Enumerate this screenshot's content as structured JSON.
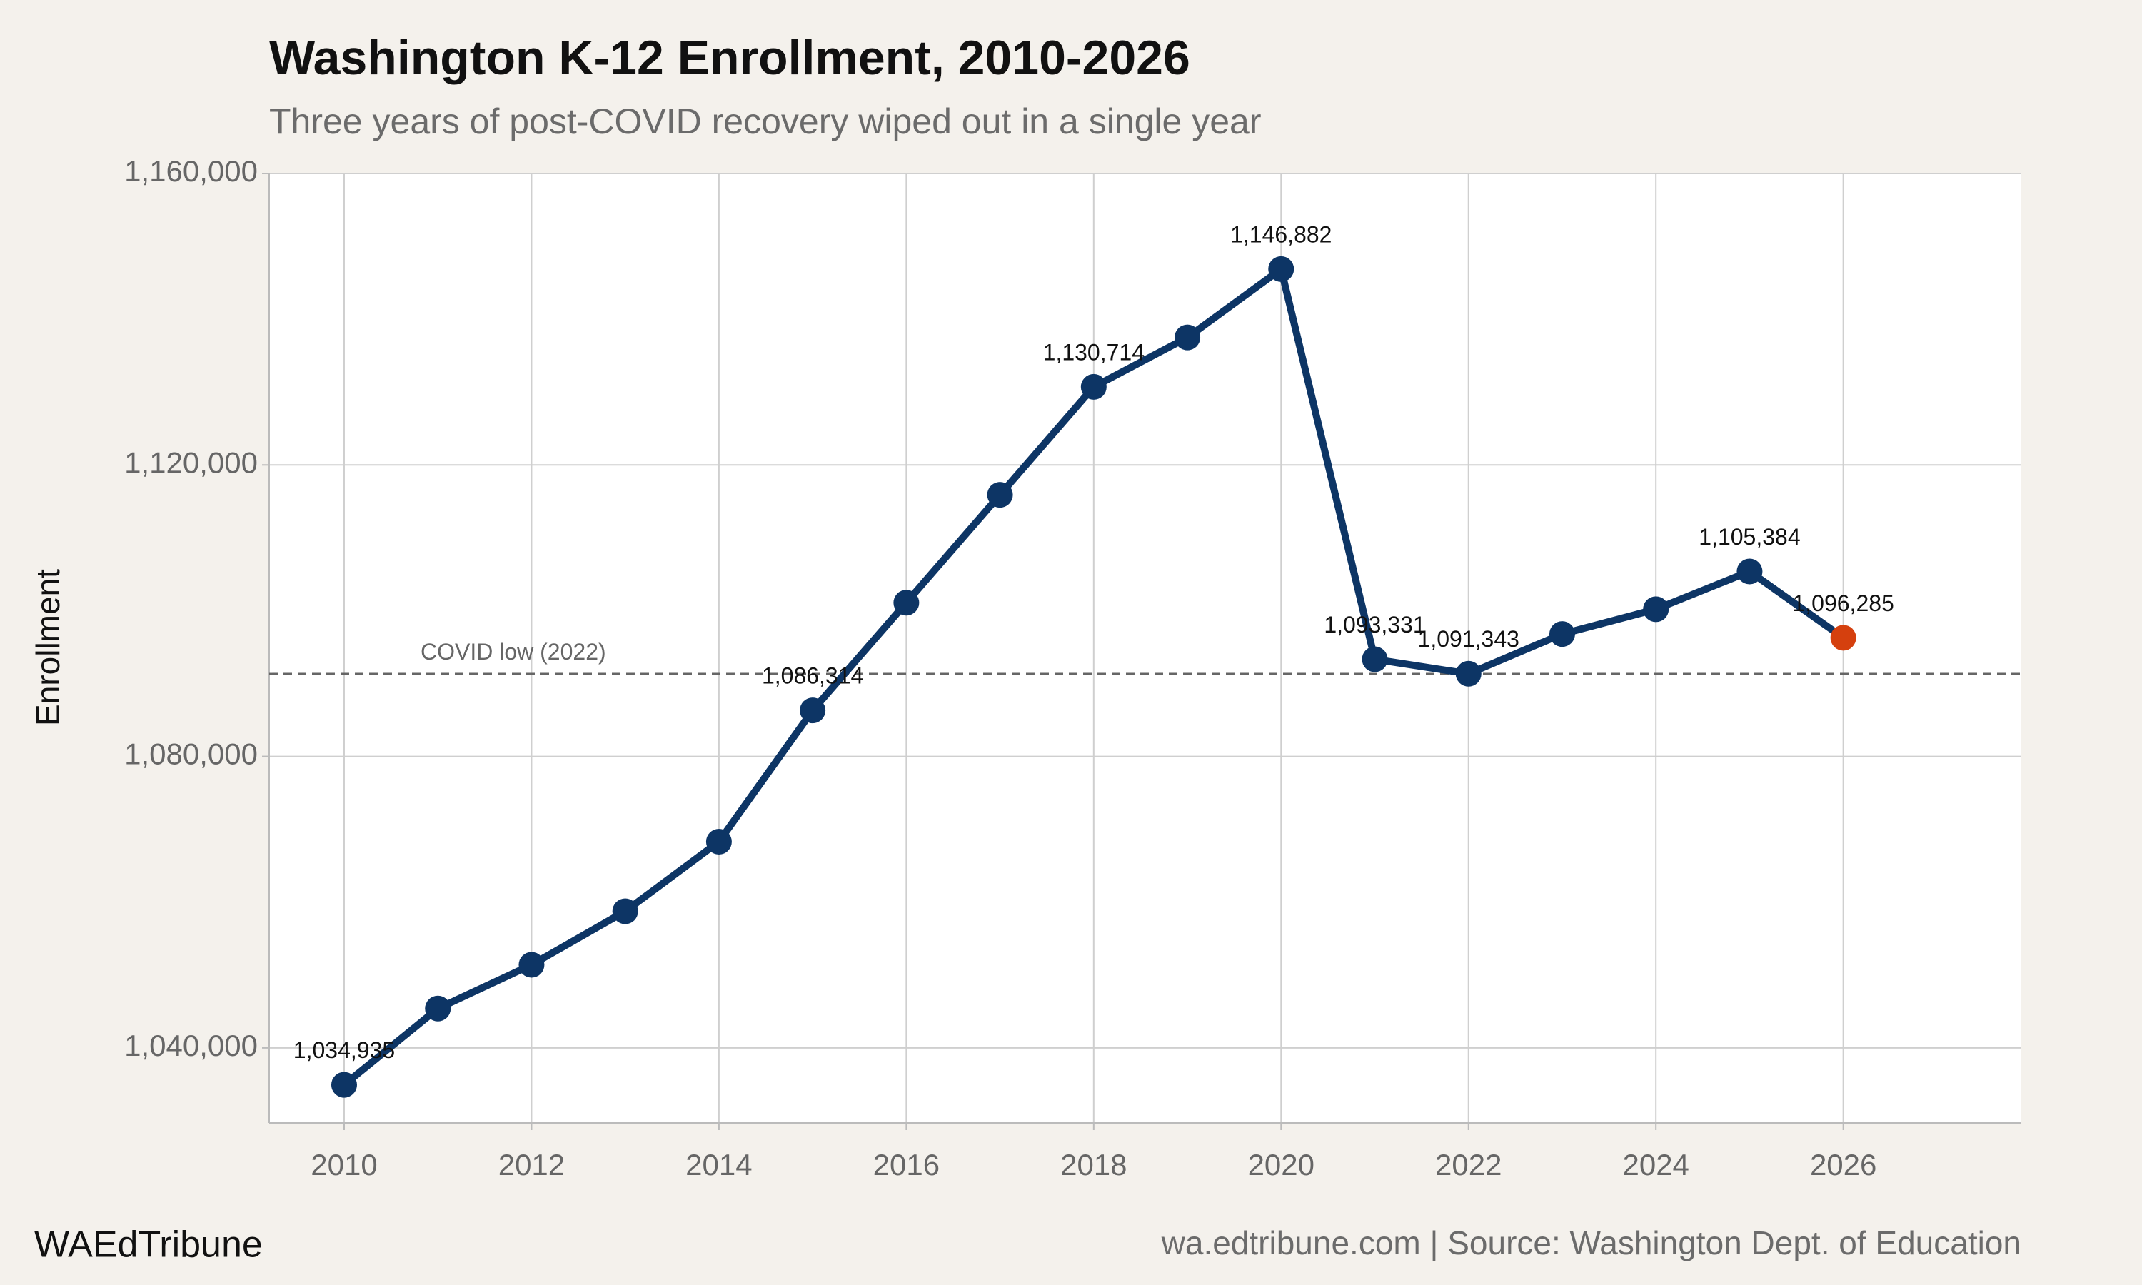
{
  "chart_data": {
    "type": "line",
    "title": "Washington K-12 Enrollment, 2010-2026",
    "subtitle": "Three years of post-COVID recovery wiped out in a single year",
    "y_label": "Enrollment",
    "footer_left": "WAEdTribune",
    "footer_right": "wa.edtribune.com | Source: Washington Dept. of Education",
    "x": [
      2010,
      2011,
      2012,
      2013,
      2014,
      2015,
      2016,
      2017,
      2018,
      2019,
      2020,
      2021,
      2022,
      2023,
      2024,
      2025,
      2026
    ],
    "series": [
      {
        "name": "Enrollment",
        "color": "#0d3565",
        "values": [
          1034935,
          1045400,
          1051400,
          1058750,
          1068300,
          1086314,
          1101100,
          1115900,
          1130714,
          1137500,
          1146882,
          1093331,
          1091343,
          1096800,
          1100200,
          1105384,
          1096285
        ],
        "value_labels": [
          "1,034,935",
          null,
          null,
          null,
          null,
          "1,086,314",
          null,
          null,
          "1,130,714",
          null,
          "1,146,882",
          "1,093,331",
          "1,091,343",
          null,
          null,
          "1,105,384",
          "1,096,285"
        ],
        "point_colors": [
          "#0d3565",
          "#0d3565",
          "#0d3565",
          "#0d3565",
          "#0d3565",
          "#0d3565",
          "#0d3565",
          "#0d3565",
          "#0d3565",
          "#0d3565",
          "#0d3565",
          "#0d3565",
          "#0d3565",
          "#0d3565",
          "#0d3565",
          "#0d3565",
          "#d5400e"
        ]
      }
    ],
    "reference_line": {
      "value": 1091343,
      "label": "COVID low (2022)"
    },
    "xlim": [
      2009.2,
      2027.9
    ],
    "xticks": [
      2010,
      2012,
      2014,
      2016,
      2018,
      2020,
      2022,
      2024,
      2026
    ],
    "ylim": [
      1029700,
      1160000
    ],
    "yticks": [
      {
        "value": 1040000,
        "label": "1,040,000"
      },
      {
        "value": 1080000,
        "label": "1,080,000"
      },
      {
        "value": 1120000,
        "label": "1,120,000"
      },
      {
        "value": 1160000,
        "label": "1,160,000"
      }
    ],
    "grid": true
  }
}
